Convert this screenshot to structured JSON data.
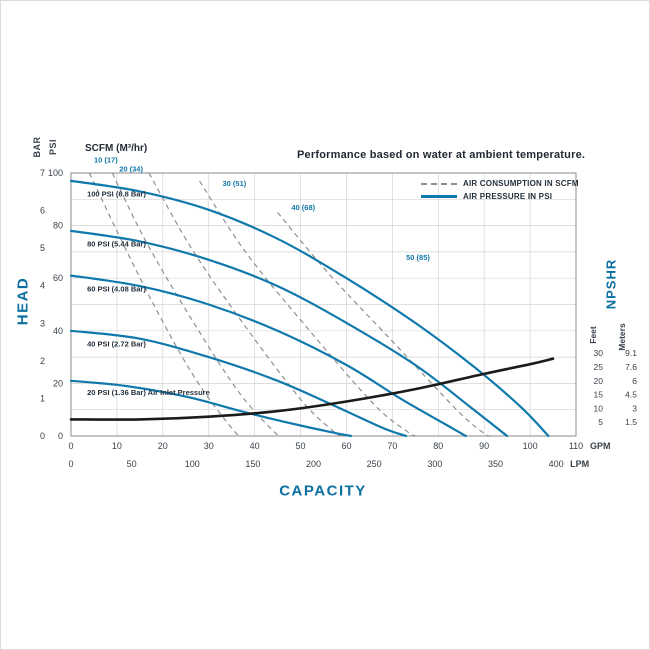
{
  "colors": {
    "accent": "#1079ab",
    "title_blue": "#0c6fa1",
    "dashed_gray": "#8f8f8f",
    "npshr_black": "#1b1b1b",
    "grid": "#d4d4d4",
    "axis": "#8a8a8a",
    "tick_text": "#39414a",
    "label_dark": "#25303b"
  },
  "chart_data": {
    "type": "line",
    "title": "Performance based on water at ambient temperature.",
    "scfm_header": "SCFM (M³/hr)",
    "legend": [
      {
        "label": "AIR CONSUMPTION IN SCFM",
        "style": "dashed",
        "color": "#8f8f8f"
      },
      {
        "label": "AIR PRESSURE IN PSI",
        "style": "solid",
        "color": "#1079ab"
      }
    ],
    "axes": {
      "x": {
        "label": "CAPACITY",
        "unit_primary": "GPM",
        "ticks_gpm": [
          0,
          10,
          20,
          30,
          40,
          50,
          60,
          70,
          80,
          90,
          100,
          110
        ],
        "unit_secondary": "LPM",
        "ticks_lpm": [
          0,
          50,
          100,
          150,
          200,
          250,
          300,
          350,
          400
        ],
        "lpm_per_gpm": 3.7854,
        "range_gpm": [
          0,
          110
        ]
      },
      "y": {
        "label": "HEAD",
        "unit_outer": "BAR",
        "ticks_bar": [
          0,
          1,
          2,
          3,
          4,
          5,
          6,
          7
        ],
        "unit_inner": "PSI",
        "ticks_psi": [
          0,
          20,
          40,
          60,
          80,
          100
        ],
        "range_psi": [
          0,
          100
        ],
        "grid_step_psi": 10
      },
      "right": {
        "label": "NPSHR",
        "feet_header": "Feet",
        "meters_header": "Meters",
        "ticks": [
          {
            "feet": 30,
            "meters": "9.1"
          },
          {
            "feet": 25,
            "meters": "7.6"
          },
          {
            "feet": 20,
            "meters": "6"
          },
          {
            "feet": 15,
            "meters": "4.5"
          },
          {
            "feet": 10,
            "meters": "3"
          },
          {
            "feet": 5,
            "meters": "1.5"
          }
        ],
        "psi_per_foot": 1.05
      }
    },
    "air_pressure_curves": [
      {
        "label": "100 PSI (6.8 Bar)",
        "label_pos": [
          3.5,
          91
        ],
        "points": [
          [
            0,
            97
          ],
          [
            15,
            93
          ],
          [
            30,
            86
          ],
          [
            45,
            75
          ],
          [
            60,
            60
          ],
          [
            75,
            43
          ],
          [
            88,
            26
          ],
          [
            98,
            11
          ],
          [
            104,
            0
          ]
        ]
      },
      {
        "label": "80 PSI (5.44 Bar)",
        "label_pos": [
          3.5,
          72
        ],
        "points": [
          [
            0,
            78
          ],
          [
            15,
            74
          ],
          [
            30,
            67
          ],
          [
            45,
            57
          ],
          [
            60,
            43
          ],
          [
            75,
            27
          ],
          [
            87,
            11
          ],
          [
            95,
            0
          ]
        ]
      },
      {
        "label": "60 PSI (4.08 Bar)",
        "label_pos": [
          3.5,
          55
        ],
        "points": [
          [
            0,
            61
          ],
          [
            15,
            57
          ],
          [
            30,
            50
          ],
          [
            45,
            40
          ],
          [
            60,
            27
          ],
          [
            72,
            14
          ],
          [
            82,
            4
          ],
          [
            86,
            0
          ]
        ]
      },
      {
        "label": "40 PSI (2.72 Bar)",
        "label_pos": [
          3.5,
          34
        ],
        "points": [
          [
            0,
            40
          ],
          [
            15,
            37
          ],
          [
            30,
            30
          ],
          [
            45,
            21
          ],
          [
            58,
            11
          ],
          [
            68,
            3
          ],
          [
            73,
            0
          ]
        ]
      },
      {
        "label": "20 PSI (1.36 Bar) Air Inlet Pressure",
        "label_pos": [
          3.5,
          15.5
        ],
        "points": [
          [
            0,
            21
          ],
          [
            12,
            19
          ],
          [
            25,
            15
          ],
          [
            38,
            9
          ],
          [
            50,
            4
          ],
          [
            58,
            1
          ],
          [
            61,
            0
          ]
        ]
      }
    ],
    "air_consumption_curves": [
      {
        "label": "10 (17)",
        "label_pos": [
          5,
          104
        ],
        "points": [
          [
            4,
            100
          ],
          [
            10,
            78
          ],
          [
            18,
            50
          ],
          [
            27,
            22
          ],
          [
            35,
            3
          ],
          [
            37,
            0
          ]
        ]
      },
      {
        "label": "20 (34)",
        "label_pos": [
          10.5,
          100.5
        ],
        "points": [
          [
            9,
            100
          ],
          [
            16,
            75
          ],
          [
            25,
            48
          ],
          [
            36,
            18
          ],
          [
            44,
            2
          ],
          [
            46,
            0
          ]
        ]
      },
      {
        "label": "30 (51)",
        "label_pos": [
          33,
          95
        ],
        "points": [
          [
            17,
            100
          ],
          [
            26,
            72
          ],
          [
            37,
            44
          ],
          [
            50,
            14
          ],
          [
            57,
            2
          ],
          [
            59,
            0
          ]
        ]
      },
      {
        "label": "40 (68)",
        "label_pos": [
          48,
          86
        ],
        "points": [
          [
            28,
            97
          ],
          [
            38,
            70
          ],
          [
            52,
            40
          ],
          [
            66,
            12
          ],
          [
            73,
            2
          ],
          [
            75,
            0
          ]
        ]
      },
      {
        "label": "50 (85)",
        "label_pos": [
          73,
          67
        ],
        "points": [
          [
            45,
            85
          ],
          [
            56,
            62
          ],
          [
            70,
            36
          ],
          [
            84,
            10
          ],
          [
            90,
            1
          ],
          [
            92,
            0
          ]
        ]
      }
    ],
    "npshr_curve": {
      "points_gpm_feet": [
        [
          0,
          6
        ],
        [
          15,
          6
        ],
        [
          30,
          7
        ],
        [
          45,
          9
        ],
        [
          60,
          12.5
        ],
        [
          75,
          17
        ],
        [
          90,
          22.5
        ],
        [
          100,
          26
        ],
        [
          105,
          28
        ]
      ]
    }
  }
}
